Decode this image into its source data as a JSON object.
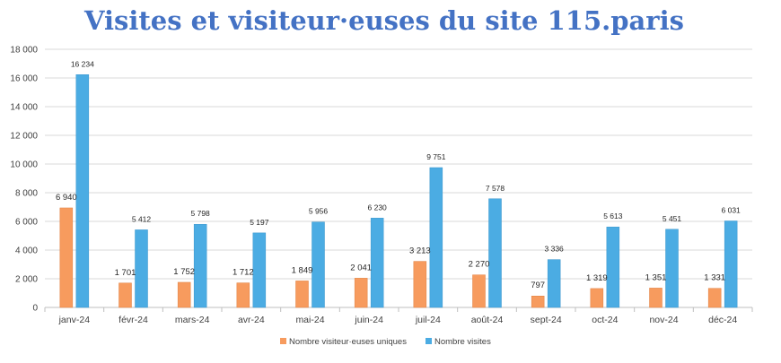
{
  "chart_data": {
    "type": "bar",
    "title": "Visites et visiteur·euses du site 115.paris",
    "xlabel": "",
    "ylabel": "",
    "categories": [
      "janv-24",
      "févr-24",
      "mars-24",
      "avr-24",
      "mai-24",
      "juin-24",
      "juil-24",
      "août-24",
      "sept-24",
      "oct-24",
      "nov-24",
      "déc-24"
    ],
    "series": [
      {
        "name": "Nombre visiteur·euses uniques",
        "color": "#F79B5E",
        "values": [
          6940,
          1701,
          1752,
          1712,
          1849,
          2041,
          3213,
          2270,
          797,
          1319,
          1351,
          1331
        ],
        "labels": [
          "6 940",
          "1 701",
          "1 752",
          "1 712",
          "1 849",
          "2 041",
          "3 213",
          "2 270",
          "797",
          "1 319",
          "1 351",
          "1 331"
        ]
      },
      {
        "name": "Nombre visites",
        "color": "#4BACE3",
        "values": [
          16234,
          5412,
          5798,
          5197,
          5956,
          6230,
          9751,
          7578,
          3336,
          5613,
          5451,
          6031
        ],
        "labels": [
          "16 234",
          "5 412",
          "5 798",
          "5 197",
          "5 956",
          "6 230",
          "9 751",
          "7 578",
          "3 336",
          "5 613",
          "5 451",
          "6 031"
        ]
      }
    ],
    "ylim": [
      0,
      18000
    ],
    "yticks": [
      "0",
      "2 000",
      "4 000",
      "6 000",
      "8 000",
      "10 000",
      "12 000",
      "14 000",
      "16 000",
      "18 000"
    ],
    "grid": true,
    "legend": "bottom"
  }
}
